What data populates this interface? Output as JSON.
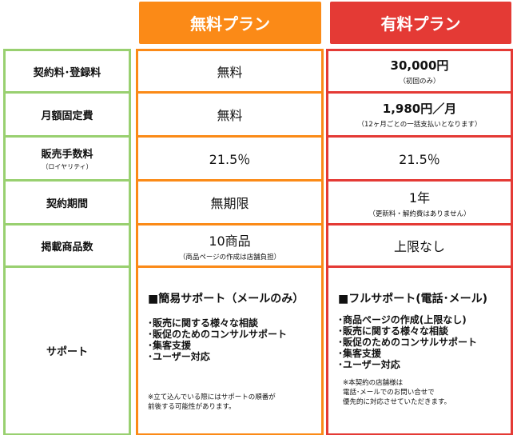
{
  "colors": {
    "free": "#fb8a17",
    "paid": "#e43a35",
    "label": "#99d070"
  },
  "headers": {
    "free": "無料プラン",
    "paid": "有料プラン"
  },
  "labels": [
    {
      "main": "契約料･登録料",
      "sub": ""
    },
    {
      "main": "月額固定費",
      "sub": ""
    },
    {
      "main": "販売手数料",
      "sub": "（ロイヤリティ）"
    },
    {
      "main": "契約期間",
      "sub": ""
    },
    {
      "main": "掲載商品数",
      "sub": ""
    },
    {
      "main": "サポート",
      "sub": ""
    }
  ],
  "free": [
    {
      "main": "無料",
      "sub": ""
    },
    {
      "main": "無料",
      "sub": ""
    },
    {
      "main": "21.5％",
      "sub": ""
    },
    {
      "main": "無期限",
      "sub": ""
    },
    {
      "main": "10商品",
      "sub": "（商品ページの作成は店舗負担）"
    }
  ],
  "paid": [
    {
      "main": "30,000円",
      "sub": "（初回のみ）"
    },
    {
      "main": "1,980円／月",
      "sub": "（12ヶ月ごとの一括支払いとなります）"
    },
    {
      "main": "21.5％",
      "sub": ""
    },
    {
      "main": "1年",
      "sub": "（更新料・解約費はありません）"
    },
    {
      "main": "上限なし",
      "sub": ""
    }
  ],
  "support_free": {
    "title": "■簡易サポート（メールのみ）",
    "items": [
      "･販売に関する様々な相談",
      "･販促のためのコンサルサポート",
      "･集客支援",
      "･ユーザー対応"
    ],
    "note": [
      "※立て込んでいる際にはサポートの順番が",
      "前後する可能性があります。"
    ]
  },
  "support_paid": {
    "title": "■フルサポート(電話･メール)",
    "items": [
      "･商品ページの作成(上限なし)",
      "･販売に関する様々な相談",
      "･販促のためのコンサルサポート",
      "･集客支援",
      "･ユーザー対応"
    ],
    "note": [
      "※本契約の店舗様は",
      "電話･メールでのお問い合せで",
      "優先的に対応させていただきます。"
    ]
  }
}
